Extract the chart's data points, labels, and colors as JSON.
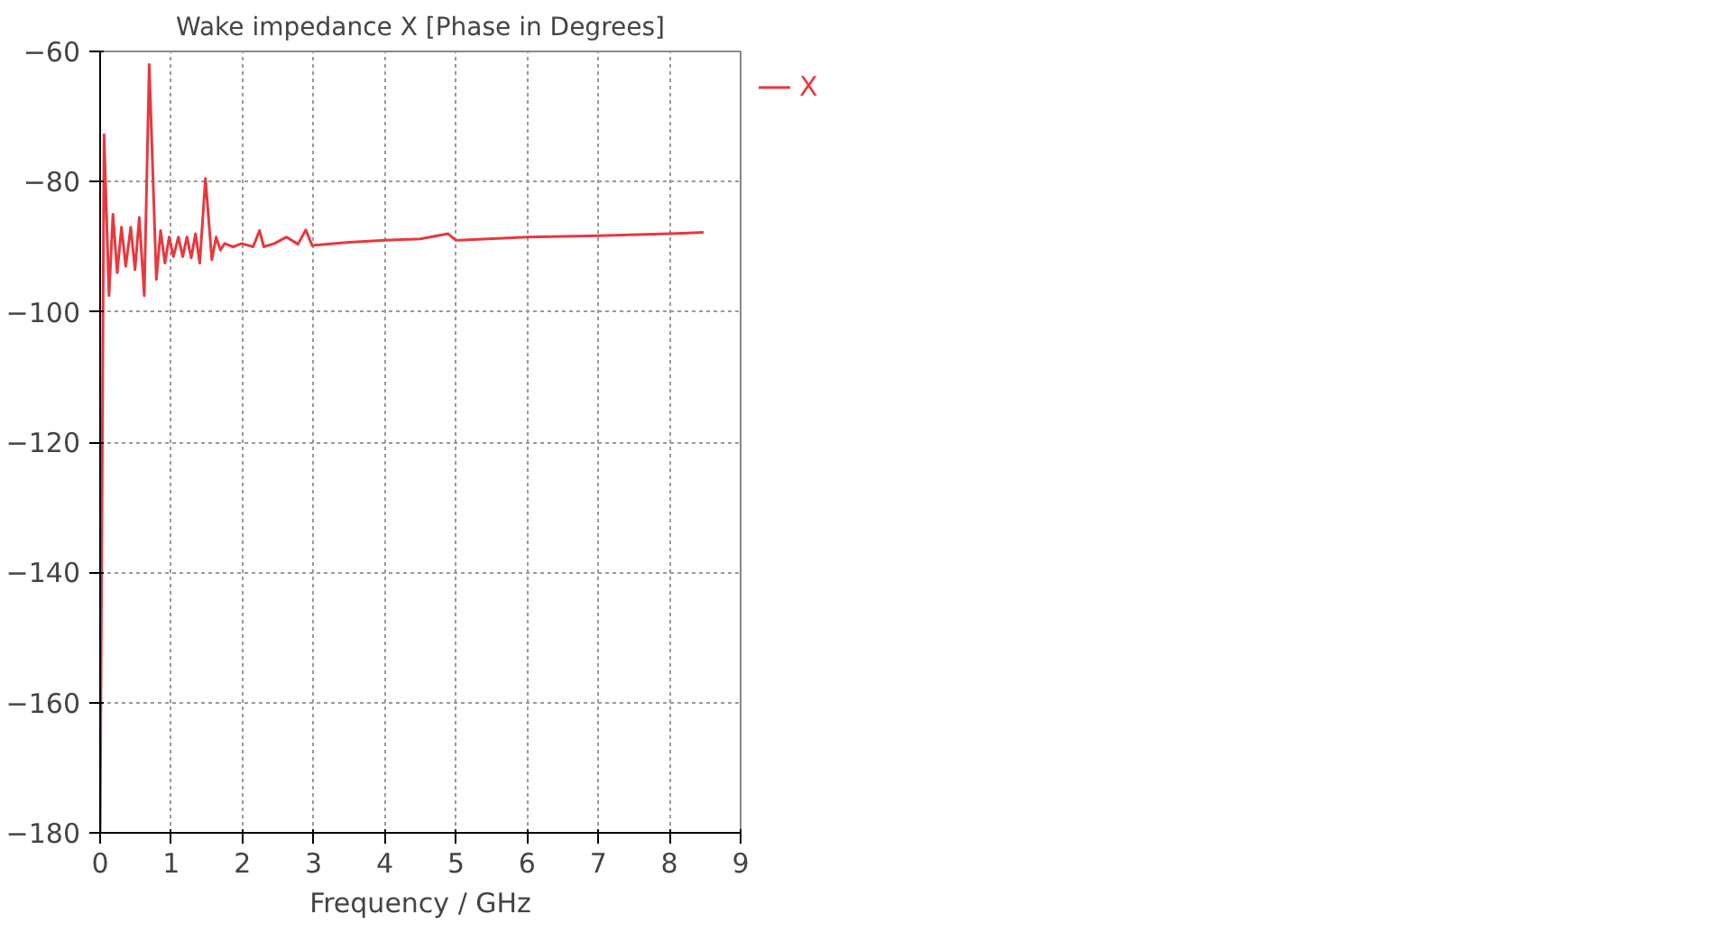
{
  "chart_data": {
    "type": "line",
    "title": "Wake impedance X [Phase in Degrees]",
    "xlabel": "Frequency / GHz",
    "xlim": [
      0,
      9
    ],
    "xticks": [
      0,
      1,
      2,
      3,
      4,
      5,
      6,
      7,
      8,
      9
    ],
    "ylim": [
      -180,
      -60
    ],
    "yticks": [
      -180,
      -160,
      -140,
      -120,
      -100,
      -80,
      -60
    ],
    "grid": true,
    "legend": "top right",
    "line_style": "solid",
    "marker": "none",
    "series": [
      {
        "name": "X",
        "color": "#e8383d",
        "x": [
          0.0,
          0.055,
          0.125,
          0.18,
          0.24,
          0.3,
          0.36,
          0.43,
          0.49,
          0.55,
          0.62,
          0.69,
          0.79,
          0.85,
          0.91,
          0.97,
          1.03,
          1.1,
          1.16,
          1.22,
          1.28,
          1.34,
          1.4,
          1.48,
          1.57,
          1.63,
          1.69,
          1.75,
          1.87,
          1.99,
          2.15,
          2.24,
          2.3,
          2.45,
          2.62,
          2.78,
          2.89,
          2.98,
          3.5,
          4.0,
          4.5,
          4.89,
          5.0,
          6.0,
          7.0,
          8.0,
          8.48
        ],
        "values": [
          -180,
          -72.8,
          -97.5,
          -85,
          -94,
          -87,
          -93,
          -87,
          -93.5,
          -85.5,
          -97.5,
          -62,
          -95,
          -87.5,
          -92.5,
          -88.5,
          -91.5,
          -88.5,
          -91.5,
          -88.5,
          -91.7,
          -88,
          -92.5,
          -79.5,
          -92,
          -88.5,
          -90.5,
          -89.5,
          -90,
          -89.5,
          -90,
          -87.5,
          -90,
          -89.5,
          -88.5,
          -89.6,
          -87.4,
          -89.8,
          -89.3,
          -89,
          -88.8,
          -88,
          -89,
          -88.5,
          -88.3,
          -88,
          -87.8
        ]
      }
    ]
  }
}
